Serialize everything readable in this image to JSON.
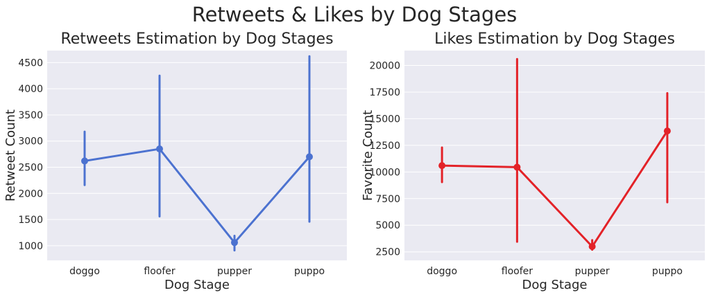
{
  "title": "Retweets & Likes by Dog Stages",
  "chart_data": [
    {
      "type": "line",
      "title": "Retweets Estimation by Dog Stages",
      "xlabel": "Dog Stage",
      "ylabel": "Retweet Count",
      "categories": [
        "doggo",
        "floofer",
        "pupper",
        "puppo"
      ],
      "values": [
        2620,
        2850,
        1060,
        2700
      ],
      "ci_low": [
        2160,
        1560,
        910,
        1460
      ],
      "ci_high": [
        3180,
        4250,
        1190,
        4620
      ],
      "yticks": [
        1000,
        1500,
        2000,
        2500,
        3000,
        3500,
        4000,
        4500
      ],
      "ylim": [
        720,
        4730
      ],
      "color": "#4c72d0",
      "grid": true
    },
    {
      "type": "line",
      "title": "Likes Estimation by Dog Stages",
      "xlabel": "Dog Stage",
      "ylabel": "Favorite Count",
      "categories": [
        "doggo",
        "floofer",
        "pupper",
        "puppo"
      ],
      "values": [
        10600,
        10450,
        3000,
        13850
      ],
      "ci_low": [
        9050,
        3450,
        2700,
        7150
      ],
      "ci_high": [
        12300,
        20600,
        3600,
        17400
      ],
      "yticks": [
        2500,
        5000,
        7500,
        10000,
        12500,
        15000,
        17500,
        20000
      ],
      "ylim": [
        1700,
        21400
      ],
      "color": "#e32228",
      "grid": true
    }
  ]
}
